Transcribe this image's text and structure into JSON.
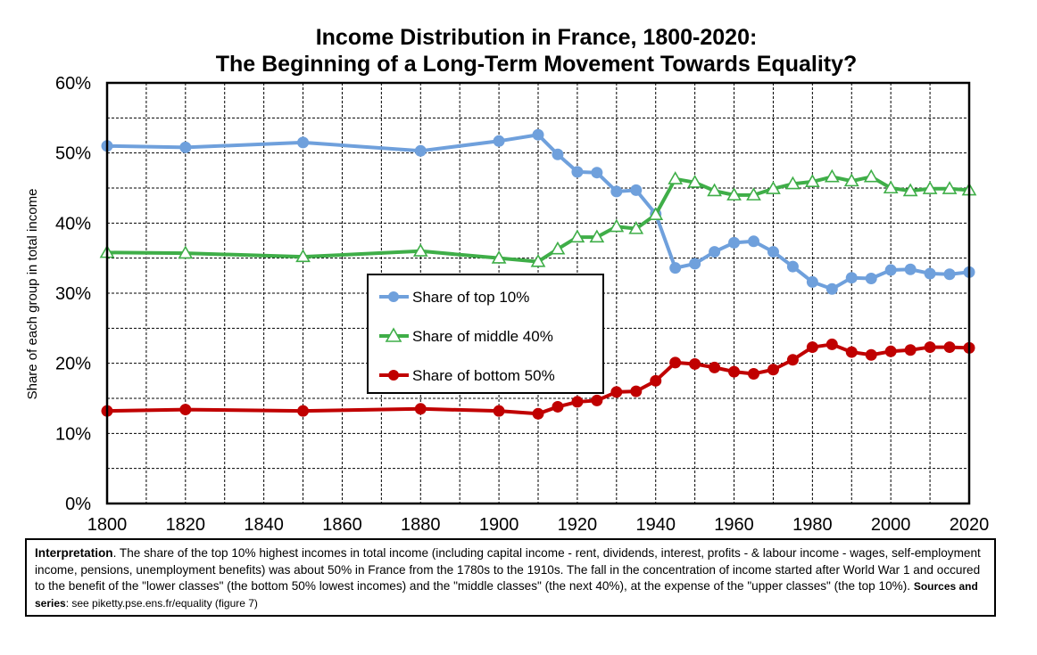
{
  "chart_data": {
    "type": "line",
    "title_line1": "Income Distribution in France, 1800-2020:",
    "title_line2": "The Beginning of a Long-Term Movement Towards Equality?",
    "ylabel": "Share of each group in total income",
    "xlim": [
      1800,
      2020
    ],
    "ylim": [
      0,
      60
    ],
    "x_ticks": [
      1800,
      1820,
      1840,
      1860,
      1880,
      1900,
      1920,
      1940,
      1960,
      1980,
      2000,
      2020
    ],
    "y_ticks": [
      "0%",
      "10%",
      "20%",
      "30%",
      "40%",
      "50%",
      "60%"
    ],
    "grid": true,
    "legend_position": "center-left",
    "series": [
      {
        "name": "Share of top 10%",
        "color": "#6fa0dc",
        "marker": "circle",
        "x": [
          1800,
          1820,
          1850,
          1880,
          1900,
          1910,
          1915,
          1920,
          1925,
          1930,
          1935,
          1940,
          1945,
          1950,
          1955,
          1960,
          1965,
          1970,
          1975,
          1980,
          1985,
          1990,
          1995,
          2000,
          2005,
          2010,
          2015,
          2020
        ],
        "y": [
          51.0,
          50.8,
          51.5,
          50.3,
          51.7,
          52.6,
          49.8,
          47.3,
          47.2,
          44.5,
          44.7,
          41.3,
          33.6,
          34.2,
          35.9,
          37.2,
          37.4,
          35.9,
          33.8,
          31.6,
          30.6,
          32.2,
          32.1,
          33.3,
          33.4,
          32.8,
          32.7,
          33.0
        ]
      },
      {
        "name": "Share of middle 40%",
        "color": "#3fae48",
        "marker": "triangle",
        "x": [
          1800,
          1820,
          1850,
          1880,
          1900,
          1910,
          1915,
          1920,
          1925,
          1930,
          1935,
          1940,
          1945,
          1950,
          1955,
          1960,
          1965,
          1970,
          1975,
          1980,
          1985,
          1990,
          1995,
          2000,
          2005,
          2010,
          2015,
          2020
        ],
        "y": [
          35.8,
          35.7,
          35.2,
          36.0,
          35.0,
          34.5,
          36.3,
          38.0,
          38.0,
          39.5,
          39.2,
          41.2,
          46.3,
          45.8,
          44.6,
          44.0,
          44.0,
          44.9,
          45.6,
          45.9,
          46.6,
          46.0,
          46.6,
          45.0,
          44.6,
          44.9,
          44.9,
          44.7
        ]
      },
      {
        "name": "Share of bottom 50%",
        "color": "#c00000",
        "marker": "circle",
        "x": [
          1800,
          1820,
          1850,
          1880,
          1900,
          1910,
          1915,
          1920,
          1925,
          1930,
          1935,
          1940,
          1945,
          1950,
          1955,
          1960,
          1965,
          1970,
          1975,
          1980,
          1985,
          1990,
          1995,
          2000,
          2005,
          2010,
          2015,
          2020
        ],
        "y": [
          13.2,
          13.4,
          13.2,
          13.5,
          13.2,
          12.8,
          13.8,
          14.5,
          14.7,
          15.9,
          16.0,
          17.5,
          20.1,
          19.9,
          19.4,
          18.8,
          18.5,
          19.1,
          20.5,
          22.3,
          22.7,
          21.6,
          21.2,
          21.7,
          21.9,
          22.3,
          22.3,
          22.2
        ]
      }
    ]
  },
  "note": {
    "lead": "Interpretation",
    "body": ". The share of the top 10% highest incomes in total income (including capital income - rent, dividends, interest, profits - & labour income - wages, self-employment income, pensions, unemployment benefits) was about 50% in France from the 1780s to the 1910s. The fall in the concentration of income started after World War 1 and occured to the benefit of the \"lower classes\" (the bottom 50% lowest incomes) and the \"middle classes\" (the next 40%), at the expense of the \"upper classes\" (the top 10%). ",
    "sources_label": "Sources and series",
    "sources_text": ": see piketty.pse.ens.fr/equality (figure 7)"
  }
}
